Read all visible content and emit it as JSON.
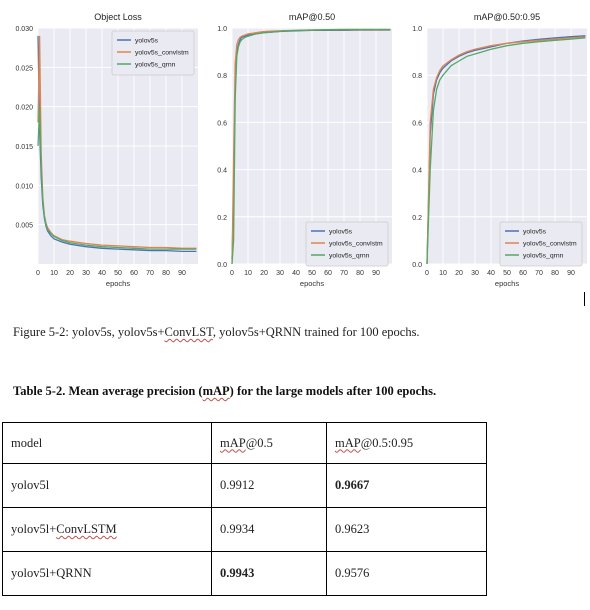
{
  "figure": {
    "charts": [
      {
        "title": "Object Loss",
        "xlabel": "epochs",
        "ylabel": "",
        "xlim": [
          0,
          100
        ],
        "ylim": [
          0.0,
          0.03
        ],
        "yticks": [
          "0.030",
          "0.025",
          "0.020",
          "0.015",
          "0.010",
          "0.005"
        ],
        "ytick_values": [
          0.03,
          0.025,
          0.02,
          0.015,
          0.01,
          0.005
        ],
        "xticks": [
          "0",
          "10",
          "20",
          "30",
          "40",
          "50",
          "60",
          "70",
          "80",
          "90"
        ],
        "legend": [
          "yolov5s",
          "yolov5s_convlstm",
          "yolov5s_qrnn"
        ],
        "legend_pos": "top-right"
      },
      {
        "title": "mAP@0.50",
        "xlabel": "epochs",
        "ylabel": "",
        "xlim": [
          0,
          100
        ],
        "ylim": [
          0.0,
          1.0
        ],
        "yticks": [
          "1.0",
          "0.8",
          "0.6",
          "0.4",
          "0.2",
          "0.0"
        ],
        "ytick_values": [
          1.0,
          0.8,
          0.6,
          0.4,
          0.2,
          0.0
        ],
        "xticks": [
          "0",
          "10",
          "20",
          "30",
          "40",
          "50",
          "60",
          "70",
          "80",
          "90"
        ],
        "legend": [
          "yolov5s",
          "yolov5s_convlstm",
          "yolov5s_qrnn"
        ],
        "legend_pos": "bottom-right"
      },
      {
        "title": "mAP@0.50:0.95",
        "xlabel": "epochs",
        "ylabel": "",
        "xlim": [
          0,
          100
        ],
        "ylim": [
          0.0,
          1.0
        ],
        "yticks": [
          "1.0",
          "0.8",
          "0.6",
          "0.4",
          "0.2",
          "0.0"
        ],
        "ytick_values": [
          1.0,
          0.8,
          0.6,
          0.4,
          0.2,
          0.0
        ],
        "xticks": [
          "0",
          "10",
          "20",
          "30",
          "40",
          "50",
          "60",
          "70",
          "80",
          "90"
        ],
        "legend": [
          "yolov5s",
          "yolov5s_convlstm",
          "yolov5s_qrnn"
        ],
        "legend_pos": "bottom-right"
      }
    ],
    "caption_parts": [
      "Figure 5-2: yolov5s, yolov5s+",
      "ConvLST",
      ", yolov5s+QRNN trained for 100 epochs."
    ]
  },
  "chart_data": [
    {
      "type": "line",
      "title": "Object Loss",
      "xlabel": "epochs",
      "ylabel": "",
      "xlim": [
        0,
        100
      ],
      "ylim": [
        0.0,
        0.03
      ],
      "grid": true,
      "legend_placement": "top-right",
      "series": [
        {
          "name": "yolov5s",
          "color": "#4c72b0",
          "x": [
            0,
            1,
            2,
            3,
            4,
            5,
            6,
            8,
            10,
            15,
            20,
            30,
            40,
            50,
            60,
            70,
            80,
            90,
            99
          ],
          "y": [
            0.029,
            0.017,
            0.011,
            0.0075,
            0.0058,
            0.0048,
            0.0042,
            0.0036,
            0.0032,
            0.0028,
            0.0025,
            0.0022,
            0.002,
            0.0019,
            0.0018,
            0.0017,
            0.0017,
            0.0016,
            0.0016
          ]
        },
        {
          "name": "yolov5s_convlstm",
          "color": "#dd8452",
          "x": [
            0,
            1,
            2,
            3,
            4,
            5,
            6,
            8,
            10,
            15,
            20,
            30,
            40,
            50,
            60,
            70,
            80,
            90,
            99
          ],
          "y": [
            0.018,
            0.029,
            0.014,
            0.0085,
            0.0062,
            0.0052,
            0.0046,
            0.004,
            0.0036,
            0.0031,
            0.0029,
            0.0026,
            0.0024,
            0.0023,
            0.0022,
            0.0021,
            0.0021,
            0.002,
            0.002
          ]
        },
        {
          "name": "yolov5s_qrnn",
          "color": "#55a868",
          "x": [
            0,
            1,
            2,
            3,
            4,
            5,
            6,
            8,
            10,
            15,
            20,
            30,
            40,
            50,
            60,
            70,
            80,
            90,
            99
          ],
          "y": [
            0.015,
            0.02,
            0.012,
            0.008,
            0.006,
            0.005,
            0.0044,
            0.0039,
            0.0035,
            0.003,
            0.0027,
            0.0024,
            0.0022,
            0.0021,
            0.002,
            0.0019,
            0.0019,
            0.0019,
            0.0019
          ]
        }
      ]
    },
    {
      "type": "line",
      "title": "mAP@0.50",
      "xlabel": "epochs",
      "ylabel": "",
      "xlim": [
        0,
        100
      ],
      "ylim": [
        0.0,
        1.0
      ],
      "grid": true,
      "legend_placement": "bottom-right",
      "series": [
        {
          "name": "yolov5s",
          "color": "#4c72b0",
          "x": [
            0,
            1,
            2,
            3,
            4,
            5,
            6,
            8,
            10,
            15,
            20,
            30,
            40,
            50,
            60,
            70,
            80,
            90,
            99
          ],
          "y": [
            0.02,
            0.3,
            0.78,
            0.9,
            0.93,
            0.95,
            0.96,
            0.965,
            0.97,
            0.975,
            0.98,
            0.985,
            0.988,
            0.99,
            0.99,
            0.99,
            0.991,
            0.991,
            0.991
          ]
        },
        {
          "name": "yolov5s_convlstm",
          "color": "#dd8452",
          "x": [
            0,
            1,
            2,
            3,
            4,
            5,
            6,
            8,
            10,
            15,
            20,
            30,
            40,
            50,
            60,
            70,
            80,
            90,
            99
          ],
          "y": [
            0.0,
            0.45,
            0.85,
            0.93,
            0.95,
            0.96,
            0.965,
            0.97,
            0.975,
            0.98,
            0.985,
            0.988,
            0.99,
            0.991,
            0.992,
            0.993,
            0.993,
            0.993,
            0.993
          ]
        },
        {
          "name": "yolov5s_qrnn",
          "color": "#55a868",
          "x": [
            0,
            1,
            2,
            3,
            4,
            5,
            6,
            8,
            10,
            15,
            20,
            30,
            40,
            50,
            60,
            70,
            80,
            90,
            99
          ],
          "y": [
            0.0,
            0.1,
            0.7,
            0.88,
            0.92,
            0.94,
            0.95,
            0.96,
            0.965,
            0.975,
            0.98,
            0.986,
            0.99,
            0.992,
            0.993,
            0.994,
            0.994,
            0.994,
            0.994
          ]
        }
      ]
    },
    {
      "type": "line",
      "title": "mAP@0.50:0.95",
      "xlabel": "epochs",
      "ylabel": "",
      "xlim": [
        0,
        100
      ],
      "ylim": [
        0.0,
        1.0
      ],
      "grid": true,
      "legend_placement": "bottom-right",
      "series": [
        {
          "name": "yolov5s",
          "color": "#4c72b0",
          "x": [
            0,
            2,
            4,
            6,
            8,
            10,
            15,
            20,
            25,
            30,
            40,
            50,
            60,
            70,
            80,
            90,
            99
          ],
          "y": [
            0.0,
            0.55,
            0.72,
            0.78,
            0.81,
            0.83,
            0.86,
            0.88,
            0.895,
            0.905,
            0.92,
            0.935,
            0.945,
            0.952,
            0.958,
            0.963,
            0.967
          ]
        },
        {
          "name": "yolov5s_convlstm",
          "color": "#dd8452",
          "x": [
            0,
            2,
            4,
            6,
            8,
            10,
            15,
            20,
            25,
            30,
            40,
            50,
            60,
            70,
            80,
            90,
            99
          ],
          "y": [
            0.0,
            0.6,
            0.74,
            0.79,
            0.82,
            0.84,
            0.865,
            0.885,
            0.9,
            0.91,
            0.925,
            0.935,
            0.942,
            0.948,
            0.953,
            0.958,
            0.962
          ]
        },
        {
          "name": "yolov5s_qrnn",
          "color": "#55a868",
          "x": [
            0,
            2,
            4,
            6,
            8,
            10,
            15,
            20,
            25,
            30,
            40,
            50,
            60,
            70,
            80,
            90,
            99
          ],
          "y": [
            0.0,
            0.4,
            0.65,
            0.74,
            0.78,
            0.8,
            0.84,
            0.86,
            0.88,
            0.89,
            0.91,
            0.925,
            0.935,
            0.942,
            0.948,
            0.953,
            0.958
          ]
        }
      ]
    }
  ],
  "table": {
    "title": "Table 5-2. Mean average precision (mAP) for the large models after 100 epochs.",
    "title_parts": [
      "Table 5-2. Mean average precision (",
      "mAP",
      ") for the large models after 100 epochs."
    ],
    "headers": [
      "model",
      "mAP@0.5",
      "mAP@0.5:0.95"
    ],
    "rows": [
      {
        "model": "yolov5l",
        "map50": "0.9912",
        "map5095": "0.9667",
        "bold_map50": false,
        "bold_map5095": true
      },
      {
        "model": "yolov5l+ConvLSTM",
        "map50": "0.9934",
        "map5095": "0.9623",
        "bold_map50": false,
        "bold_map5095": false
      },
      {
        "model": "yolov5l+QRNN",
        "map50": "0.9943",
        "map5095": "0.9576",
        "bold_map50": true,
        "bold_map5095": false
      }
    ],
    "header_parts": {
      "map50": [
        "mAP",
        "@0.5"
      ],
      "map5095": [
        "mAP",
        "@0.5:0.95"
      ]
    },
    "row_model_parts": [
      [
        "yolov5l"
      ],
      [
        "yolov5l+",
        "ConvLSTM"
      ],
      [
        "yolov5l+QRNN"
      ]
    ]
  },
  "colors": {
    "yolov5s": "#4c72b0",
    "yolov5s_convlstm": "#dd8452",
    "yolov5s_qrnn": "#55a868",
    "plot_bg": "#eaeaf2",
    "grid": "#ffffff"
  }
}
